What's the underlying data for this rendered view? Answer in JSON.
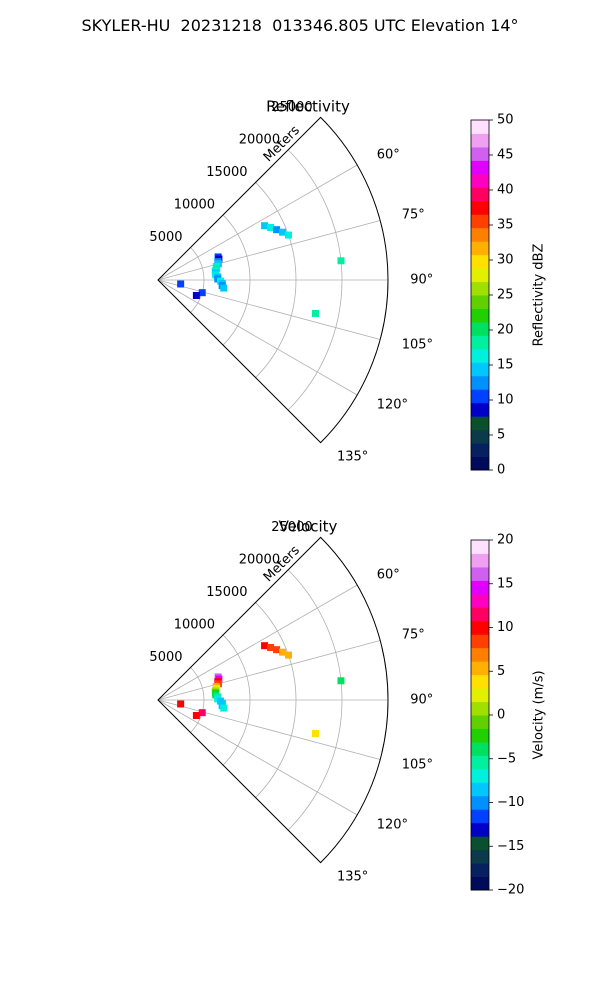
{
  "suptitle": "SKYLER-HU  20231218  013346.805 UTC Elevation 14°",
  "chart_data": [
    {
      "type": "polar-sector",
      "title": "Reflectivity",
      "radial_label": "Meters",
      "radial_ticks": [
        5000,
        10000,
        15000,
        20000,
        25000
      ],
      "radial_max": 25000,
      "azimuth_range_deg": [
        45,
        135
      ],
      "azimuth_ticks": [
        "60°",
        "75°",
        "90°",
        "105°",
        "120°",
        "135°"
      ],
      "azimuth_tick_values": [
        60,
        75,
        90,
        105,
        120,
        135
      ],
      "grid": true,
      "colorbar": {
        "label": "Reflectivity dBZ",
        "min": 0,
        "max": 50,
        "ticks": [
          "0",
          "5",
          "10",
          "15",
          "20",
          "25",
          "30",
          "35",
          "40",
          "45",
          "50"
        ],
        "colors": [
          "#000a5a",
          "#062060",
          "#0b3b4a",
          "#0a5030",
          "#0000c8",
          "#0040ff",
          "#0090ff",
          "#00c8ff",
          "#00f0e0",
          "#00f0a0",
          "#00e060",
          "#20d000",
          "#60d000",
          "#a0e000",
          "#e0f000",
          "#ffe000",
          "#ffb000",
          "#ff8000",
          "#ff4000",
          "#ff0000",
          "#ff0060",
          "#ff00c0",
          "#e000ff",
          "#d060f0",
          "#f0a0f0",
          "#ffe0ff"
        ]
      },
      "echoes": [
        {
          "az": 63,
          "r": 13000,
          "v": 14
        },
        {
          "az": 65,
          "r": 13500,
          "v": 16
        },
        {
          "az": 67,
          "r": 14000,
          "v": 12
        },
        {
          "az": 69,
          "r": 14500,
          "v": 15
        },
        {
          "az": 71,
          "r": 15000,
          "v": 17
        },
        {
          "az": 69,
          "r": 7000,
          "v": 11
        },
        {
          "az": 71,
          "r": 7000,
          "v": 9
        },
        {
          "az": 73,
          "r": 6800,
          "v": 13
        },
        {
          "az": 75,
          "r": 6800,
          "v": 15
        },
        {
          "az": 77,
          "r": 6500,
          "v": 17
        },
        {
          "az": 79,
          "r": 6500,
          "v": 18
        },
        {
          "az": 81,
          "r": 6300,
          "v": 16
        },
        {
          "az": 83,
          "r": 6300,
          "v": 14
        },
        {
          "az": 85,
          "r": 6300,
          "v": 17
        },
        {
          "az": 87,
          "r": 6500,
          "v": 15
        },
        {
          "az": 89,
          "r": 6500,
          "v": 12
        },
        {
          "az": 91,
          "r": 6800,
          "v": 16
        },
        {
          "az": 93,
          "r": 7000,
          "v": 14
        },
        {
          "az": 95,
          "r": 7000,
          "v": 12
        },
        {
          "az": 97,
          "r": 7200,
          "v": 15
        },
        {
          "az": 100,
          "r": 2500,
          "v": 10
        },
        {
          "az": 106,
          "r": 5000,
          "v": 11
        },
        {
          "az": 112,
          "r": 4500,
          "v": 9
        },
        {
          "az": 84,
          "r": 20000,
          "v": 18
        },
        {
          "az": 102,
          "r": 17500,
          "v": 18
        }
      ]
    },
    {
      "type": "polar-sector",
      "title": "Velocity",
      "radial_label": "Meters",
      "radial_ticks": [
        5000,
        10000,
        15000,
        20000,
        25000
      ],
      "radial_max": 25000,
      "azimuth_range_deg": [
        45,
        135
      ],
      "azimuth_ticks": [
        "60°",
        "75°",
        "90°",
        "105°",
        "120°",
        "135°"
      ],
      "azimuth_tick_values": [
        60,
        75,
        90,
        105,
        120,
        135
      ],
      "grid": true,
      "colorbar": {
        "label": "Velocity (m/s)",
        "min": -20,
        "max": 20,
        "ticks": [
          "−20",
          "−15",
          "−10",
          "−5",
          "0",
          "5",
          "10",
          "15",
          "20"
        ],
        "colors": [
          "#000a5a",
          "#062060",
          "#0b3b4a",
          "#0a5030",
          "#0000c8",
          "#0040ff",
          "#0090ff",
          "#00c8ff",
          "#00f0e0",
          "#00f0a0",
          "#00e060",
          "#20d000",
          "#60d000",
          "#a0e000",
          "#e0f000",
          "#ffe000",
          "#ffb000",
          "#ff8000",
          "#ff4000",
          "#ff0000",
          "#ff0060",
          "#ff00c0",
          "#e000ff",
          "#d060f0",
          "#f0a0f0",
          "#ffe0ff"
        ]
      },
      "echoes": [
        {
          "az": 63,
          "r": 13000,
          "v": 10
        },
        {
          "az": 65,
          "r": 13500,
          "v": 9
        },
        {
          "az": 67,
          "r": 14000,
          "v": 8
        },
        {
          "az": 69,
          "r": 14500,
          "v": 6
        },
        {
          "az": 71,
          "r": 15000,
          "v": 5
        },
        {
          "az": 69,
          "r": 7000,
          "v": 16
        },
        {
          "az": 71,
          "r": 7000,
          "v": 14
        },
        {
          "az": 73,
          "r": 6800,
          "v": 10
        },
        {
          "az": 75,
          "r": 6800,
          "v": 8
        },
        {
          "az": 77,
          "r": 6500,
          "v": 5
        },
        {
          "az": 79,
          "r": 6500,
          "v": 2
        },
        {
          "az": 81,
          "r": 6300,
          "v": 0
        },
        {
          "az": 83,
          "r": 6300,
          "v": -2
        },
        {
          "az": 85,
          "r": 6300,
          "v": -4
        },
        {
          "az": 87,
          "r": 6500,
          "v": -6
        },
        {
          "az": 89,
          "r": 6500,
          "v": -7
        },
        {
          "az": 91,
          "r": 6800,
          "v": -8
        },
        {
          "az": 93,
          "r": 7000,
          "v": -9
        },
        {
          "az": 95,
          "r": 7000,
          "v": -8
        },
        {
          "az": 97,
          "r": 7200,
          "v": -7
        },
        {
          "az": 100,
          "r": 2500,
          "v": 10
        },
        {
          "az": 106,
          "r": 5000,
          "v": 11
        },
        {
          "az": 112,
          "r": 4500,
          "v": 10
        },
        {
          "az": 84,
          "r": 20000,
          "v": -4
        },
        {
          "az": 102,
          "r": 17500,
          "v": 4
        }
      ]
    }
  ]
}
